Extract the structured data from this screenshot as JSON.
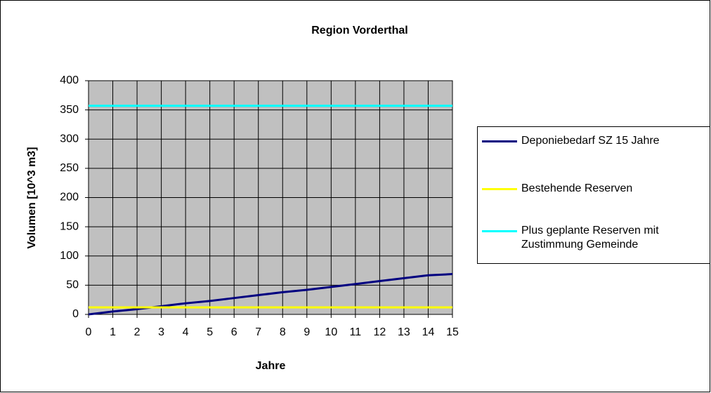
{
  "chart_data": {
    "type": "line",
    "title": "Region Vorderthal",
    "x_label": "Jahre",
    "y_label": "Volumen [10^3 m3]",
    "x": [
      0,
      1,
      2,
      3,
      4,
      5,
      6,
      7,
      8,
      9,
      10,
      11,
      12,
      13,
      14,
      15
    ],
    "series": [
      {
        "name": "Deponiebedarf SZ 15 Jahre",
        "color": "#000080",
        "values": [
          0,
          5,
          9,
          14,
          19,
          23,
          28,
          33,
          38,
          42,
          47,
          52,
          57,
          62,
          67,
          69
        ]
      },
      {
        "name": "Bestehende Reserven",
        "color": "#ffff00",
        "values": [
          12,
          12,
          12,
          12,
          12,
          12,
          12,
          12,
          12,
          12,
          12,
          12,
          12,
          12,
          12,
          12
        ]
      },
      {
        "name": "Plus geplante Reserven mit Zustimmung Gemeinde",
        "color": "#00ffff",
        "values": [
          357,
          357,
          357,
          357,
          357,
          357,
          357,
          357,
          357,
          357,
          357,
          357,
          357,
          357,
          357,
          357
        ]
      }
    ],
    "xlim": [
      0,
      15
    ],
    "xticks": [
      0,
      1,
      2,
      3,
      4,
      5,
      6,
      7,
      8,
      9,
      10,
      11,
      12,
      13,
      14,
      15
    ],
    "ylim": [
      0,
      400
    ],
    "yticks": [
      0,
      50,
      100,
      150,
      200,
      250,
      300,
      350,
      400
    ],
    "grid": true,
    "plot_background": "#c0c0c0",
    "legend": "right"
  }
}
